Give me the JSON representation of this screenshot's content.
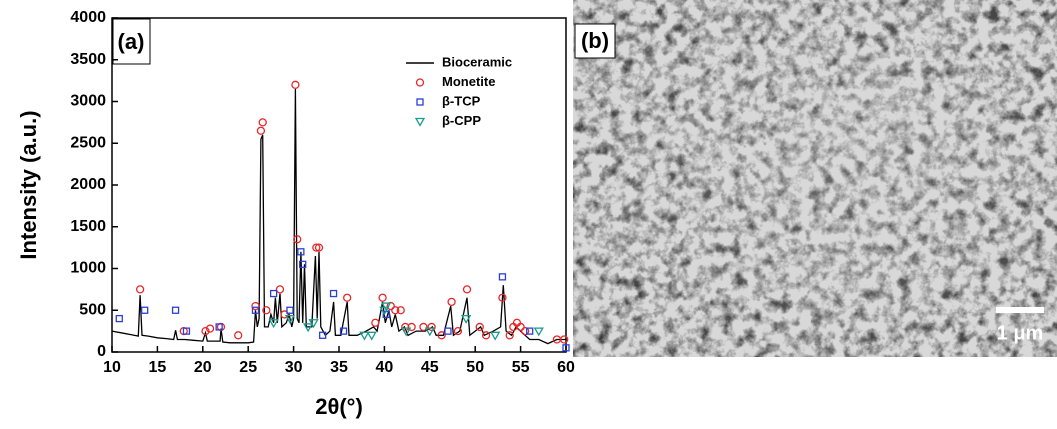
{
  "chart_data": {
    "type": "line",
    "panel_label": "(a)",
    "x_label": "2θ(°)",
    "y_label": "Intensity (a.u.)",
    "xlim": [
      10,
      60
    ],
    "xticks": [
      10,
      15,
      20,
      25,
      30,
      35,
      40,
      45,
      50,
      55,
      60
    ],
    "ylim": [
      0,
      4000
    ],
    "yticks": [
      0,
      500,
      1000,
      1500,
      2000,
      2500,
      3000,
      3500,
      4000
    ],
    "legend": "upper right",
    "series": [
      {
        "name": "Bioceramic",
        "color": "#000000",
        "marker": "line",
        "x": [
          10,
          11,
          12,
          12.9,
          13.1,
          13.3,
          14,
          15,
          16,
          16.8,
          17.0,
          17.2,
          18,
          19,
          20,
          20.3,
          20.5,
          21,
          21.9,
          22.0,
          22.2,
          23,
          24,
          25,
          25.6,
          25.8,
          26.0,
          26.2,
          26.4,
          26.6,
          26.8,
          27.2,
          27.5,
          27.8,
          28.0,
          28.2,
          28.5,
          28.7,
          29.2,
          29.5,
          29.8,
          30.0,
          30.2,
          30.4,
          30.6,
          30.8,
          31.0,
          31.2,
          31.4,
          32.0,
          32.4,
          32.6,
          32.8,
          33.0,
          33.5,
          34.0,
          34.4,
          34.6,
          35.2,
          35.9,
          36.1,
          37,
          38,
          38.8,
          39.2,
          39.8,
          40.1,
          40.5,
          40.8,
          41.2,
          41.6,
          42.2,
          42.6,
          43.5,
          44.5,
          45.3,
          45.7,
          46.5,
          47.3,
          47.6,
          48.3,
          49.1,
          49.4,
          50.0,
          50.6,
          51.0,
          52.0,
          52.8,
          53.1,
          53.4,
          54.0,
          54.5,
          55.0,
          55.5,
          56.0,
          57.0,
          58.0,
          59.0,
          60
        ],
        "values": [
          250,
          230,
          210,
          190,
          680,
          200,
          190,
          170,
          160,
          150,
          260,
          150,
          150,
          140,
          130,
          230,
          130,
          130,
          130,
          280,
          120,
          110,
          110,
          110,
          120,
          500,
          300,
          400,
          2550,
          2600,
          300,
          300,
          450,
          350,
          650,
          350,
          700,
          300,
          350,
          450,
          300,
          400,
          3150,
          400,
          350,
          1200,
          350,
          1050,
          300,
          300,
          1150,
          400,
          1200,
          300,
          200,
          250,
          600,
          200,
          200,
          600,
          200,
          200,
          250,
          300,
          250,
          600,
          350,
          500,
          300,
          450,
          250,
          300,
          200,
          250,
          250,
          300,
          200,
          200,
          550,
          200,
          250,
          650,
          200,
          250,
          300,
          200,
          250,
          300,
          800,
          250,
          200,
          300,
          250,
          200,
          150,
          150,
          100,
          150,
          150
        ]
      },
      {
        "name": "Monetite",
        "color": "#e8262a",
        "marker": "circle",
        "x": [
          13.1,
          17.9,
          20.3,
          20.8,
          22.0,
          23.9,
          25.8,
          26.4,
          26.6,
          27.0,
          28.5,
          29.0,
          30.2,
          30.4,
          32.5,
          32.8,
          35.9,
          39.0,
          39.8,
          40.7,
          41.2,
          41.8,
          42.3,
          43.0,
          44.3,
          45.2,
          46.3,
          47.4,
          48.1,
          49.1,
          50.5,
          51.2,
          53.0,
          53.8,
          54.2,
          54.6,
          55.0,
          55.5,
          59.0,
          59.8
        ],
        "values": [
          750,
          250,
          250,
          280,
          300,
          200,
          550,
          2650,
          2750,
          500,
          750,
          450,
          3200,
          1350,
          1250,
          1250,
          650,
          350,
          650,
          550,
          500,
          500,
          300,
          300,
          300,
          300,
          200,
          600,
          250,
          750,
          300,
          200,
          650,
          200,
          300,
          350,
          300,
          250,
          150,
          150
        ]
      },
      {
        "name": "β-TCP",
        "color": "#2b3fd6",
        "marker": "square",
        "x": [
          10.8,
          13.6,
          17.0,
          18.2,
          21.8,
          25.8,
          27.8,
          29.6,
          30.8,
          31.0,
          33.2,
          34.4,
          35.5,
          40.2,
          47.0,
          53.0,
          56.0,
          60.0
        ],
        "values": [
          400,
          500,
          500,
          250,
          300,
          500,
          700,
          500,
          1200,
          1050,
          200,
          700,
          250,
          450,
          250,
          900,
          250,
          50
        ]
      },
      {
        "name": "β-CPP",
        "color": "#1a9a8e",
        "marker": "triangle-down",
        "x": [
          27.8,
          29.6,
          31.6,
          32.2,
          37.8,
          38.6,
          40.0,
          40.2,
          42.4,
          45.0,
          49.0,
          52.2,
          57.0
        ],
        "values": [
          350,
          400,
          300,
          350,
          200,
          200,
          500,
          550,
          250,
          250,
          400,
          200,
          250
        ]
      }
    ]
  },
  "panel_b": {
    "label": "(b)",
    "scale_bar": "1 μm"
  }
}
